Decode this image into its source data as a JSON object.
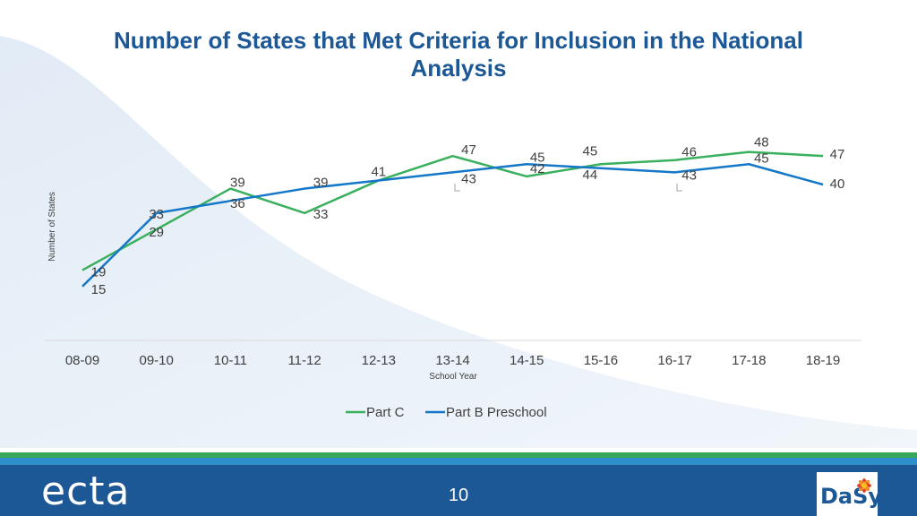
{
  "title": "Number of States that Met Criteria for Inclusion in the National Analysis",
  "chart_data": {
    "type": "line",
    "title": "Number of States that Met Criteria for Inclusion in the National Analysis",
    "xlabel": "School Year",
    "ylabel": "Number of States",
    "categories": [
      "08-09",
      "09-10",
      "10-11",
      "11-12",
      "12-13",
      "13-14",
      "14-15",
      "15-16",
      "16-17",
      "17-18",
      "18-19"
    ],
    "ylim": [
      0,
      60
    ],
    "grid": false,
    "legend": "bottom",
    "series": [
      {
        "name": "Part C",
        "color": "#3ab05e",
        "values": [
          19,
          29,
          39,
          33,
          41,
          47,
          42,
          45,
          46,
          48,
          47
        ],
        "labels": [
          "19",
          "29",
          "39",
          "33",
          "41",
          "47",
          "42",
          "45",
          "46",
          "48",
          "47"
        ]
      },
      {
        "name": "Part B Preschool",
        "color": "#1477c8",
        "values": [
          15,
          33,
          36,
          39,
          41,
          43,
          45,
          44,
          43,
          45,
          40
        ],
        "labels": [
          "15",
          "33",
          "36",
          "39",
          "",
          "43",
          "45",
          "44",
          "43",
          "45",
          "40"
        ]
      }
    ]
  },
  "footer": {
    "logo_left": "ecta",
    "page_number": "10",
    "logo_right": "DaSy"
  },
  "colors": {
    "title": "#1c5796",
    "footer": "#1c5796",
    "stripe_green": "#3aa657",
    "stripe_teal": "#2f8fcb"
  }
}
